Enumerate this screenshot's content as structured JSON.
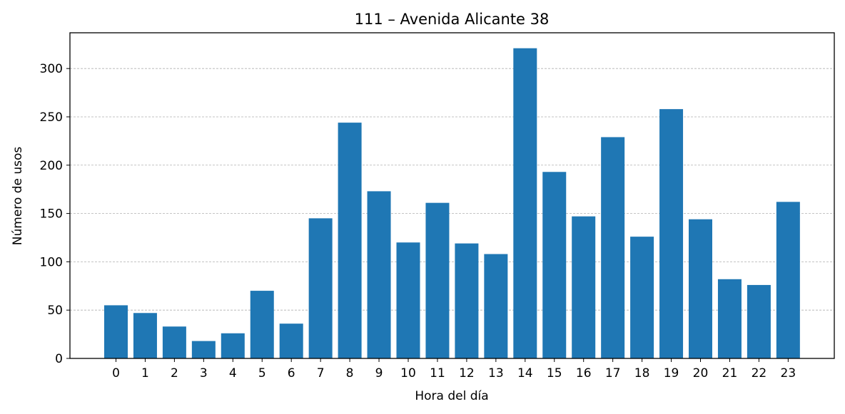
{
  "chart_data": {
    "type": "bar",
    "title": "111 – Avenida Alicante 38",
    "xlabel": "Hora del día",
    "ylabel": "Número de usos",
    "categories": [
      "0",
      "1",
      "2",
      "3",
      "4",
      "5",
      "6",
      "7",
      "8",
      "9",
      "10",
      "11",
      "12",
      "13",
      "14",
      "15",
      "16",
      "17",
      "18",
      "19",
      "20",
      "21",
      "22",
      "23"
    ],
    "values": [
      55,
      47,
      33,
      18,
      26,
      70,
      36,
      145,
      244,
      173,
      120,
      161,
      119,
      108,
      321,
      193,
      147,
      229,
      126,
      258,
      144,
      82,
      76,
      162
    ],
    "ylim": [
      0,
      337
    ],
    "yticks": [
      0,
      50,
      100,
      150,
      200,
      250,
      300
    ],
    "grid": "horizontal dashed",
    "bar_color": "#1f77b4"
  }
}
